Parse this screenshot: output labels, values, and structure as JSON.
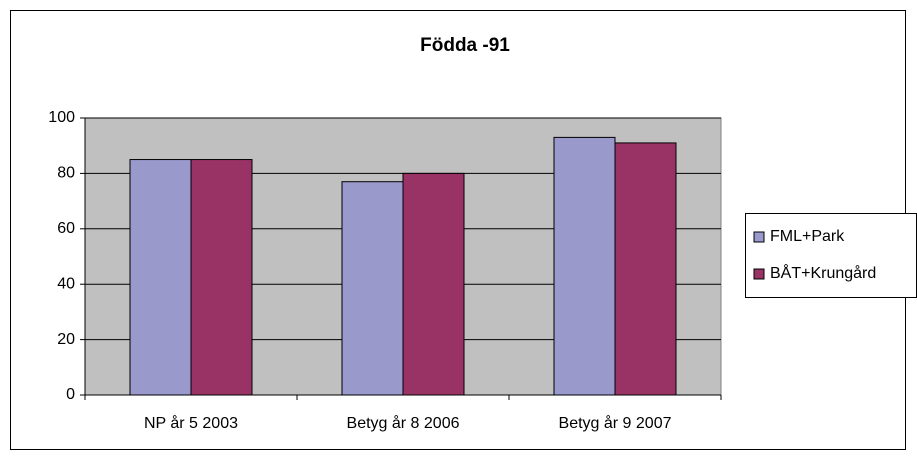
{
  "chart_data": {
    "type": "bar",
    "title": "Födda -91",
    "categories": [
      "NP år 5 2003",
      "Betyg år 8 2006",
      "Betyg år 9 2007"
    ],
    "series": [
      {
        "name": "FML+Park",
        "color": "#9999cc",
        "values": [
          85,
          77,
          93
        ]
      },
      {
        "name": "BÅT+Krungård",
        "color": "#993366",
        "values": [
          85,
          80,
          91
        ]
      }
    ],
    "ylim": [
      0,
      100
    ],
    "yticks": [
      0,
      20,
      40,
      60,
      80,
      100
    ],
    "grid": true,
    "legend": "right"
  }
}
